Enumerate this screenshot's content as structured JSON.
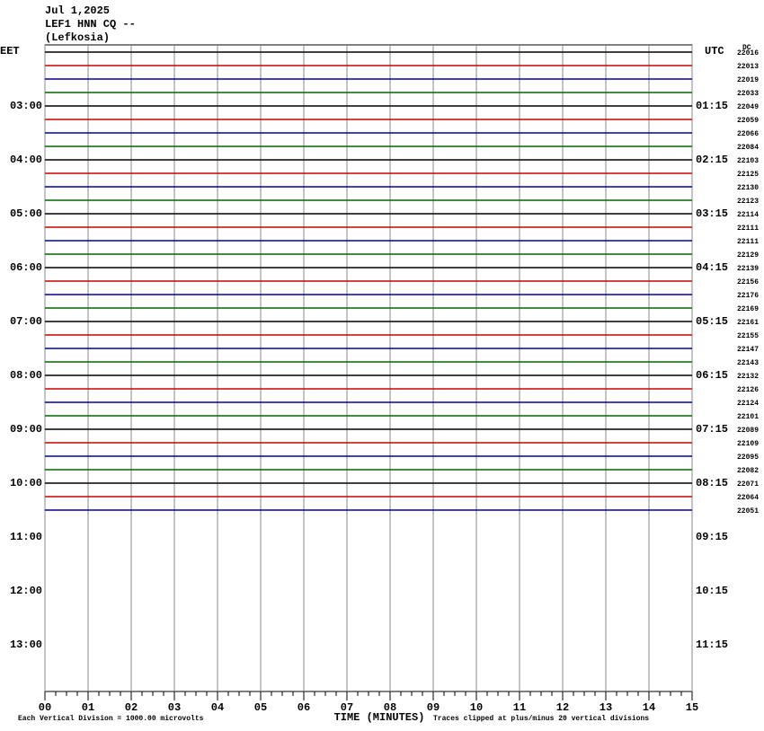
{
  "chart_data": {
    "type": "helicorder",
    "title": "Jul 1,2025",
    "subtitle": [
      "LEF1 HNN CQ --",
      "(Lefkosia)"
    ],
    "left_axis_label": "EET",
    "right_axis_label": "UTC",
    "left_labels": [
      "03:00",
      "04:00",
      "05:00",
      "06:00",
      "07:00",
      "08:00",
      "09:00",
      "10:00",
      "11:00",
      "12:00",
      "13:00"
    ],
    "right_labels": [
      "01:15",
      "02:15",
      "03:15",
      "04:15",
      "05:15",
      "06:15",
      "07:15",
      "08:15",
      "09:15",
      "10:15",
      "11:15"
    ],
    "counts_header": "DC",
    "counts": [
      22016,
      22013,
      22019,
      22033,
      22049,
      22059,
      22066,
      22084,
      22103,
      22125,
      22130,
      22123,
      22114,
      22111,
      22111,
      22129,
      22139,
      22156,
      22176,
      22169,
      22161,
      22155,
      22147,
      22143,
      22132,
      22126,
      22124,
      22101,
      22089,
      22109,
      22095,
      22082,
      22071,
      22064,
      22051
    ],
    "colors": [
      "#000000",
      "#cc0000",
      "#0000aa",
      "#006600"
    ],
    "xlabel": "TIME (MINUTES)",
    "xlim": [
      0,
      15
    ],
    "xticks": [
      {
        "value": 0,
        "label": "00"
      },
      {
        "value": 1,
        "label": "01"
      },
      {
        "value": 2,
        "label": "02"
      },
      {
        "value": 3,
        "label": "03"
      },
      {
        "value": 4,
        "label": "04"
      },
      {
        "value": 5,
        "label": "05"
      },
      {
        "value": 6,
        "label": "06"
      },
      {
        "value": 7,
        "label": "07"
      },
      {
        "value": 8,
        "label": "08"
      },
      {
        "value": 9,
        "label": "09"
      },
      10,
      11,
      12,
      13,
      14,
      15
    ],
    "grid": true,
    "notes": [
      "Each Vertical Division = 1000.00 microvolts",
      "Traces clipped at plus/minus 20 vertical divisions"
    ]
  }
}
